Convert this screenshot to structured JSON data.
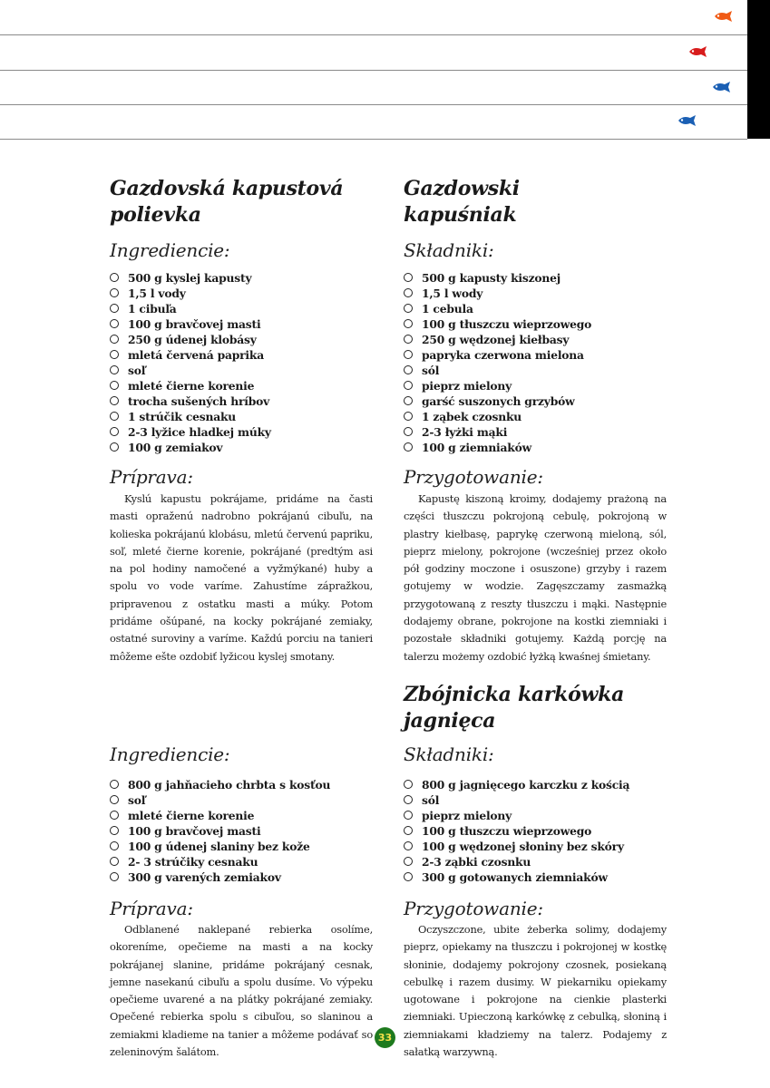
{
  "header": {
    "fish_icons": [
      {
        "name": "orange-fish-icon",
        "color": "#f05a14"
      },
      {
        "name": "red-fish-icon",
        "color": "#d81c1c"
      },
      {
        "name": "blue-fish-icon",
        "color": "#1a5fb4"
      },
      {
        "name": "blue-fish-icon",
        "color": "#1a5fb4"
      }
    ]
  },
  "recipe1": {
    "sk": {
      "title_line1": "Gazdovská kapustová",
      "title_line2": "polievka",
      "ingredients_heading": "Ingrediencie:",
      "ingredients": [
        "500 g kyslej kapusty",
        "1,5 l vody",
        "1 cibuľa",
        "100 g bravčovej masti",
        "250 g údenej klobásy",
        "mletá červená paprika",
        "soľ",
        "mleté čierne korenie",
        "trocha sušených hríbov",
        "1 strúčik cesnaku",
        "2-3 lyžice hladkej múky",
        "100 g zemiakov"
      ],
      "prep_heading": "Príprava:",
      "prep_text": "Kyslú kapustu pokrájame, pridáme na časti masti opraženú nadrobno pokrájanú cibuľu, na kolieska pokrájanú klobásu, mletú červenú papriku, soľ, mleté čierne korenie, pokrájané (predtým asi na pol hodiny namočené a vyžmýkané) huby a spolu vo vode varíme. Zahustíme zápražkou, pripravenou z ostatku masti a múky. Potom pridáme ošúpané, na kocky pokrájané zemiaky, ostatné suroviny a varíme. Každú porciu na tanieri  môžeme ešte ozdobiť lyžicou kyslej smotany."
    },
    "pl": {
      "title_line1": "Gazdowski",
      "title_line2": "kapuśniak",
      "ingredients_heading": "Składniki:",
      "ingredients": [
        "500 g kapusty kiszonej",
        "1,5 l wody",
        "1 cebula",
        "100 g tłuszczu wieprzowego",
        "250 g wędzonej kiełbasy",
        "papryka czerwona mielona",
        "sól",
        "pieprz mielony",
        "garść suszonych grzybów",
        "1 ząbek czosnku",
        "2-3 łyżki mąki",
        "100 g ziemniaków"
      ],
      "prep_heading": "Przygotowanie:",
      "prep_text": "Kapustę kiszoną kroimy, dodajemy prażoną na części tłuszczu pokrojoną cebulę, pokrojoną w plastry kiełbasę, paprykę czerwoną mieloną, sól, pieprz mielony, pokrojone (wcześniej przez około pół godziny moczone i osuszone) grzyby i razem gotujemy w wodzie. Zagęszczamy zasmażką przygotowaną z reszty tłuszczu i mąki. Następnie dodajemy obrane, pokrojone na kostki ziemniaki i pozostałe składniki gotujemy. Każdą porcję na talerzu możemy ozdobić łyżką kwaśnej śmietany."
    }
  },
  "recipe2": {
    "sk": {
      "ingredients_heading": "Ingrediencie:",
      "ingredients": [
        "800 g jahňacieho chrbta s kosťou",
        "soľ",
        "mleté čierne korenie",
        "100 g bravčovej masti",
        "100 g údenej slaniny bez kože",
        "2- 3 strúčiky cesnaku",
        "300 g varených zemiakov"
      ],
      "prep_heading": "Príprava:",
      "prep_text": "Odblanené naklepané rebierka osolíme, okoreníme, opečieme na masti a na kocky pokrájanej slanine, pridáme pokrájaný cesnak, jemne nasekanú cibuľu a spolu dusíme. Vo výpeku opečieme uvarené a na plátky pokrájané zemiaky. Opečené rebierka spolu s cibuľou, so slaninou a zemiakmi kladieme na tanier a môžeme podávať so zeleninovým šalátom."
    },
    "pl": {
      "title_line1": "Zbójnicka karkówka",
      "title_line2": "jagnięca",
      "ingredients_heading": "Składniki:",
      "ingredients": [
        "800 g jagnięcego karczku z kością",
        "sól",
        "pieprz mielony",
        "100 g tłuszczu wieprzowego",
        "100 g wędzonej słoniny bez skóry",
        "2-3 ząbki czosnku",
        "300 g gotowanych ziemniaków"
      ],
      "prep_heading": "Przygotowanie:",
      "prep_text": "Oczyszczone, ubite żeberka solimy, dodajemy pieprz, opiekamy na tłuszczu i pokrojonej w kostkę słoninie, dodajemy pokrojony czosnek, posiekaną cebulkę i razem dusimy. W piekarniku opiekamy ugotowane i pokrojone na cienkie plasterki ziemniaki. Upieczoną karkówkę z cebulką, słoniną i ziemniakami kładziemy na talerz. Podajemy z sałatką warzywną."
    }
  },
  "page_number": "33"
}
